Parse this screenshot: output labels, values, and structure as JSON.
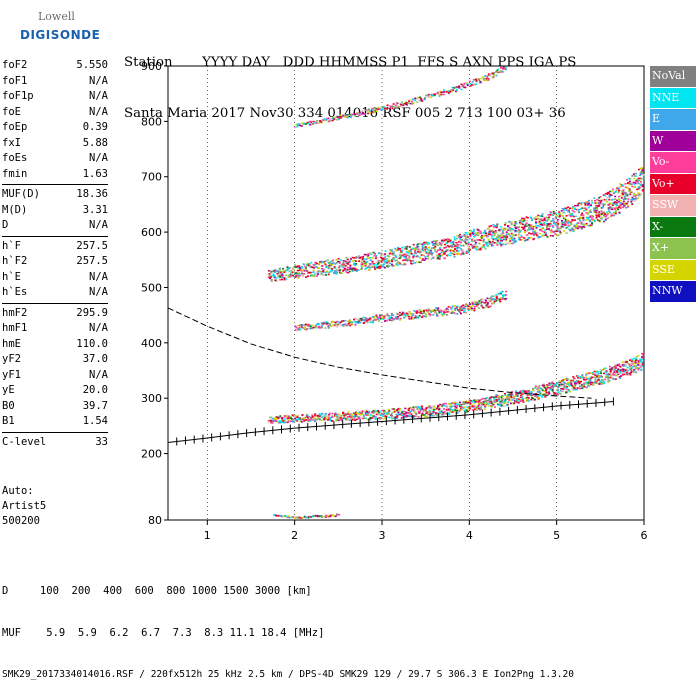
{
  "logo": {
    "top": "Lowell",
    "bottom": "DIGISONDE"
  },
  "header": {
    "line1": "Station       YYYY DAY   DDD HHMMSS P1  FFS S AXN PPS IGA PS",
    "line2": "Santa Maria 2017 Nov30 334 014016 RSF 005 2 713 100 03+ 36"
  },
  "params": {
    "group1": [
      {
        "label": "foF2",
        "value": "5.550"
      },
      {
        "label": "foF1",
        "value": "N/A"
      },
      {
        "label": "foF1p",
        "value": "N/A"
      },
      {
        "label": "foE",
        "value": "N/A"
      },
      {
        "label": "foEp",
        "value": "0.39"
      },
      {
        "label": "fxI",
        "value": "5.88"
      },
      {
        "label": "foEs",
        "value": "N/A"
      },
      {
        "label": "fmin",
        "value": "1.63"
      }
    ],
    "group2": [
      {
        "label": "MUF(D)",
        "value": "18.36"
      },
      {
        "label": "M(D)",
        "value": "3.31"
      },
      {
        "label": "D",
        "value": "N/A"
      }
    ],
    "group3": [
      {
        "label": "h`F",
        "value": "257.5"
      },
      {
        "label": "h`F2",
        "value": "257.5"
      },
      {
        "label": "h`E",
        "value": "N/A"
      },
      {
        "label": "h`Es",
        "value": "N/A"
      }
    ],
    "group4": [
      {
        "label": "hmF2",
        "value": "295.9"
      },
      {
        "label": "hmF1",
        "value": "N/A"
      },
      {
        "label": "hmE",
        "value": "110.0"
      },
      {
        "label": "yF2",
        "value": "37.0"
      },
      {
        "label": "yF1",
        "value": "N/A"
      },
      {
        "label": "yE",
        "value": "20.0"
      },
      {
        "label": "B0",
        "value": "39.7"
      },
      {
        "label": "B1",
        "value": "1.54"
      }
    ],
    "group5": [
      {
        "label": "C-level",
        "value": "33"
      }
    ]
  },
  "auto": {
    "line1": "Auto:",
    "line2": "Artist5",
    "line3": "500200"
  },
  "footer": {
    "d_line": "D     100  200  400  600  800 1000 1500 3000 [km]",
    "muf_line": "MUF    5.9  5.9  6.2  6.7  7.3  8.3 11.1 18.4 [MHz]",
    "file_line": "SMK29_2017334014016.RSF / 220fx512h 25 kHz 2.5 km / DPS-4D SMK29 129 / 29.7 S 306.3 E Ion2Png 1.3.20"
  },
  "legend": [
    {
      "label": "NoVal",
      "color": "#808080"
    },
    {
      "label": "NNE",
      "color": "#00e5f0"
    },
    {
      "label": "E",
      "color": "#3fa8ea"
    },
    {
      "label": "W",
      "color": "#a0009a"
    },
    {
      "label": "Vo-",
      "color": "#ff3d9a"
    },
    {
      "label": "Vo+",
      "color": "#e8002a"
    },
    {
      "label": "SSW",
      "color": "#f2b2b2"
    },
    {
      "label": "X-",
      "color": "#0a7a10"
    },
    {
      "label": "X+",
      "color": "#8cc24e"
    },
    {
      "label": "SSE",
      "color": "#d4d400"
    },
    {
      "label": "NNW",
      "color": "#1010c0"
    }
  ],
  "chart_data": {
    "type": "scatter",
    "title": "",
    "xlabel": "",
    "ylabel": "",
    "xlim": [
      0.55,
      6.0
    ],
    "ylim": [
      80,
      900
    ],
    "x_ticks": [
      1,
      2,
      3,
      4,
      5,
      6
    ],
    "y_ticks": [
      80,
      200,
      300,
      400,
      500,
      600,
      700,
      800,
      900
    ],
    "profile_curve": {
      "x": [
        0.55,
        1.0,
        1.5,
        2.0,
        2.5,
        3.0,
        3.5,
        4.0,
        4.5,
        5.0,
        5.5,
        5.65
      ],
      "y": [
        220,
        228,
        238,
        246,
        252,
        258,
        264,
        270,
        278,
        286,
        292,
        294
      ]
    },
    "dashed_curve": {
      "x": [
        0.55,
        1.0,
        1.5,
        2.0,
        2.5,
        3.0,
        3.5,
        4.0,
        4.5,
        5.0,
        5.4
      ],
      "y": [
        463,
        430,
        398,
        374,
        356,
        342,
        330,
        318,
        310,
        304,
        300
      ]
    },
    "traces": [
      {
        "name": "F-trace 1st hop",
        "x": [
          1.7,
          2.0,
          2.5,
          3.0,
          3.5,
          4.0,
          4.5,
          5.0,
          5.3,
          5.6,
          5.85,
          6.0
        ],
        "y": [
          262,
          265,
          268,
          272,
          278,
          287,
          302,
          320,
          332,
          345,
          358,
          370
        ]
      },
      {
        "name": "F-trace 2nd hop",
        "x": [
          1.7,
          2.0,
          2.5,
          3.0,
          3.5,
          3.8,
          4.0,
          4.5,
          5.0,
          5.5,
          5.8,
          6.0
        ],
        "y": [
          522,
          530,
          540,
          552,
          566,
          574,
          585,
          602,
          618,
          642,
          670,
          700
        ]
      },
      {
        "name": "F-trace 3rd hop",
        "x": [
          2.0,
          2.5,
          3.0,
          3.4,
          3.8,
          4.2,
          4.4
        ],
        "y": [
          793,
          808,
          825,
          840,
          858,
          880,
          898
        ]
      },
      {
        "name": "Intermediate",
        "x": [
          2.0,
          2.5,
          3.0,
          3.5,
          3.9,
          4.2,
          4.4
        ],
        "y": [
          428,
          436,
          446,
          455,
          462,
          474,
          488
        ]
      },
      {
        "name": "Low echoes",
        "x": [
          1.75,
          1.85,
          1.95,
          2.0,
          2.3,
          2.4,
          2.5
        ],
        "y": [
          90,
          88,
          87,
          86,
          88,
          89,
          90
        ]
      }
    ]
  }
}
